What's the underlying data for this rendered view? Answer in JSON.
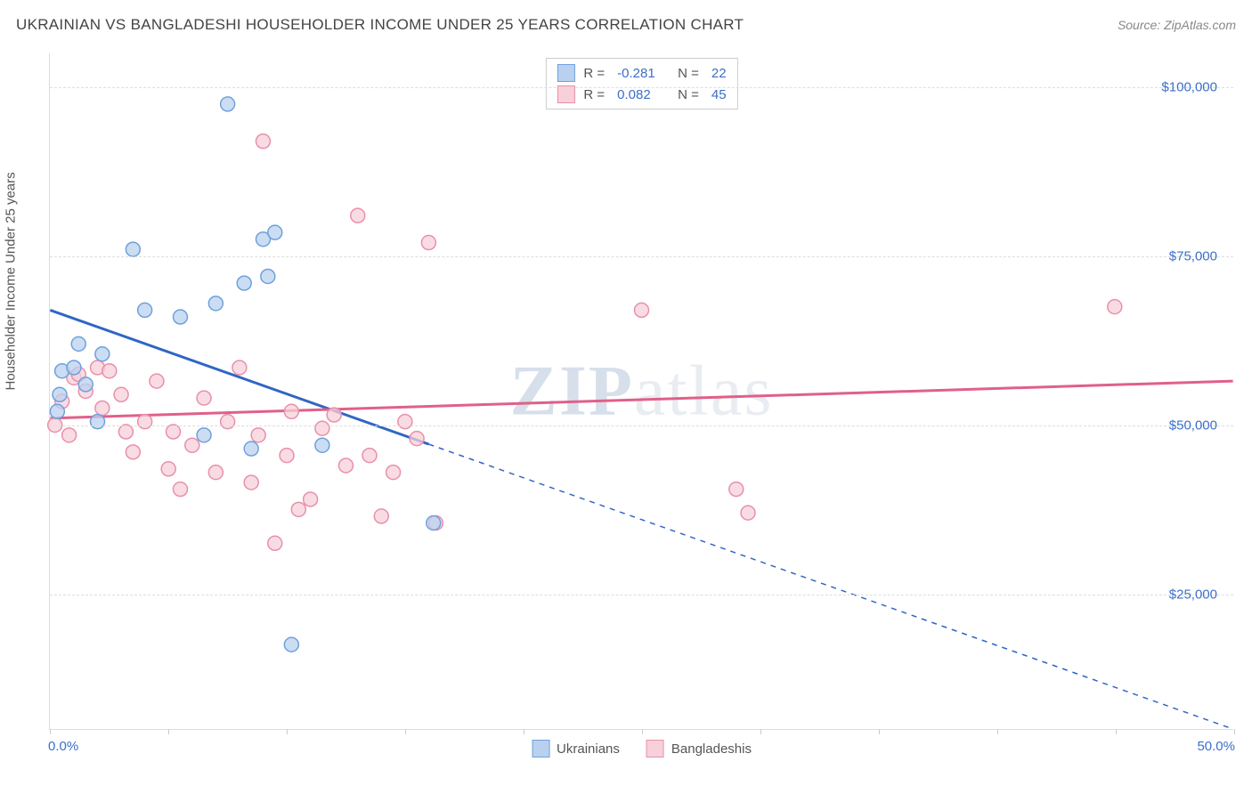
{
  "header": {
    "title": "UKRAINIAN VS BANGLADESHI HOUSEHOLDER INCOME UNDER 25 YEARS CORRELATION CHART",
    "source": "Source: ZipAtlas.com"
  },
  "watermark": {
    "part1": "ZIP",
    "part2": "atlas"
  },
  "chart": {
    "type": "scatter",
    "ylabel": "Householder Income Under 25 years",
    "background_color": "#ffffff",
    "grid_color": "#dddddd",
    "xlim": [
      0,
      50
    ],
    "ylim": [
      5000,
      105000
    ],
    "x_ticks": [
      0,
      5,
      10,
      15,
      20,
      25,
      30,
      35,
      40,
      45,
      50
    ],
    "x_tick_labels": {
      "first": "0.0%",
      "last": "50.0%"
    },
    "y_gridlines": [
      25000,
      50000,
      75000,
      100000
    ],
    "y_tick_labels": [
      "$25,000",
      "$50,000",
      "$75,000",
      "$100,000"
    ],
    "series": [
      {
        "name": "Ukrainians",
        "marker_fill": "#b9d1ef",
        "marker_stroke": "#6fa0dc",
        "line_color": "#2f66c4",
        "marker_radius": 8,
        "R": "-0.281",
        "N": "22",
        "trend": {
          "x1": 0,
          "y1": 67000,
          "x2": 50,
          "y2": 5000,
          "solid_until_x": 16
        },
        "points": [
          [
            0.3,
            52000
          ],
          [
            0.4,
            54500
          ],
          [
            0.5,
            58000
          ],
          [
            1.2,
            62000
          ],
          [
            1.0,
            58500
          ],
          [
            1.5,
            56000
          ],
          [
            2.2,
            60500
          ],
          [
            3.5,
            76000
          ],
          [
            4.0,
            67000
          ],
          [
            5.5,
            66000
          ],
          [
            7.0,
            68000
          ],
          [
            7.5,
            97500
          ],
          [
            8.2,
            71000
          ],
          [
            9.0,
            77500
          ],
          [
            9.2,
            72000
          ],
          [
            9.5,
            78500
          ],
          [
            8.5,
            46500
          ],
          [
            10.2,
            17500
          ],
          [
            11.5,
            47000
          ],
          [
            6.5,
            48500
          ],
          [
            16.2,
            35500
          ],
          [
            2.0,
            50500
          ]
        ]
      },
      {
        "name": "Bangladeshis",
        "marker_fill": "#f7d0da",
        "marker_stroke": "#e98fab",
        "line_color": "#e06088",
        "marker_radius": 8,
        "R": "0.082",
        "N": "45",
        "trend": {
          "x1": 0,
          "y1": 51000,
          "x2": 50,
          "y2": 56500,
          "solid_until_x": 50
        },
        "points": [
          [
            0.2,
            50000
          ],
          [
            0.5,
            53500
          ],
          [
            0.8,
            48500
          ],
          [
            1.0,
            57000
          ],
          [
            1.2,
            57500
          ],
          [
            1.5,
            55000
          ],
          [
            2.0,
            58500
          ],
          [
            2.2,
            52500
          ],
          [
            2.5,
            58000
          ],
          [
            3.0,
            54500
          ],
          [
            3.2,
            49000
          ],
          [
            3.5,
            46000
          ],
          [
            4.0,
            50500
          ],
          [
            4.5,
            56500
          ],
          [
            5.0,
            43500
          ],
          [
            5.2,
            49000
          ],
          [
            5.5,
            40500
          ],
          [
            6.0,
            47000
          ],
          [
            6.5,
            54000
          ],
          [
            7.0,
            43000
          ],
          [
            7.5,
            50500
          ],
          [
            8.0,
            58500
          ],
          [
            8.5,
            41500
          ],
          [
            8.8,
            48500
          ],
          [
            9.0,
            92000
          ],
          [
            9.5,
            32500
          ],
          [
            10.0,
            45500
          ],
          [
            10.2,
            52000
          ],
          [
            10.5,
            37500
          ],
          [
            11.0,
            39000
          ],
          [
            11.5,
            49500
          ],
          [
            12.0,
            51500
          ],
          [
            12.5,
            44000
          ],
          [
            13.0,
            81000
          ],
          [
            13.5,
            45500
          ],
          [
            14.0,
            36500
          ],
          [
            14.5,
            43000
          ],
          [
            15.0,
            50500
          ],
          [
            15.5,
            48000
          ],
          [
            16.0,
            77000
          ],
          [
            16.3,
            35500
          ],
          [
            25.0,
            67000
          ],
          [
            29.0,
            40500
          ],
          [
            29.5,
            37000
          ],
          [
            45.0,
            67500
          ]
        ]
      }
    ],
    "legend_bottom": [
      "Ukrainians",
      "Bangladeshis"
    ]
  }
}
